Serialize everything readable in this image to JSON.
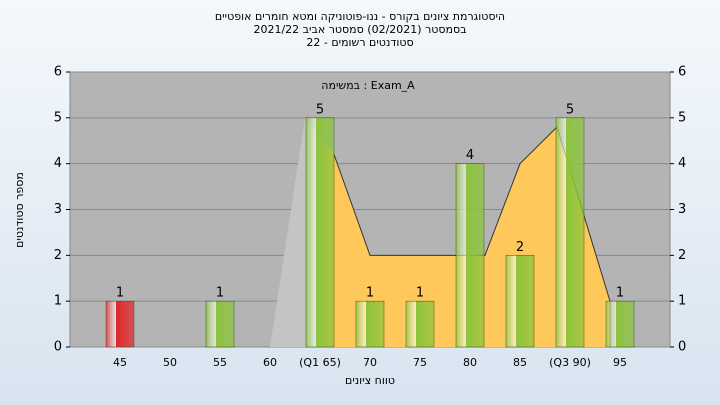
{
  "chart_data": {
    "type": "bar",
    "title_lines": [
      "היסטוגרמת ציונים בקורס - ננו-פוטוניקה ומטא חומרים אופטיים",
      "בסמסטר  (02/2021)  סמסטר אביב 2021/22",
      "סטודנטים רשומים - 22"
    ],
    "annotation": "במשימה : Exam_A",
    "x_label": "טווח ציונים",
    "y_label": "מספר סטודנטים",
    "categories": [
      "45",
      "50",
      "55",
      "60",
      "(Q1 65)",
      "70",
      "75",
      "80",
      "85",
      "(Q3 90)",
      "95"
    ],
    "values": [
      1,
      0,
      1,
      0,
      5,
      1,
      1,
      4,
      2,
      5,
      1
    ],
    "colors": [
      "#e0262b",
      "#8cc43c",
      "#8cc43c",
      "#8cc43c",
      "#8cc43c",
      "#8cc43c",
      "#8cc43c",
      "#8cc43c",
      "#8cc43c",
      "#8cc43c",
      "#8cc43c"
    ],
    "xlim": [
      40,
      100
    ],
    "ylim": [
      0,
      6
    ],
    "yticks": [
      0,
      1,
      2,
      3,
      4,
      5,
      6
    ],
    "y2lim": [
      0,
      6
    ],
    "y2ticks": [
      0,
      1,
      2,
      3,
      4,
      5,
      6
    ],
    "grid": true,
    "area": {
      "x": [
        60,
        63.5,
        66.4,
        70,
        81.5,
        85,
        88.7,
        94,
        94
      ],
      "values": [
        0,
        5,
        4.2,
        2,
        2,
        4,
        4.8,
        1,
        0
      ],
      "colors": [
        "#c4c4c4",
        "#ffc85a"
      ],
      "split": 65
    }
  }
}
